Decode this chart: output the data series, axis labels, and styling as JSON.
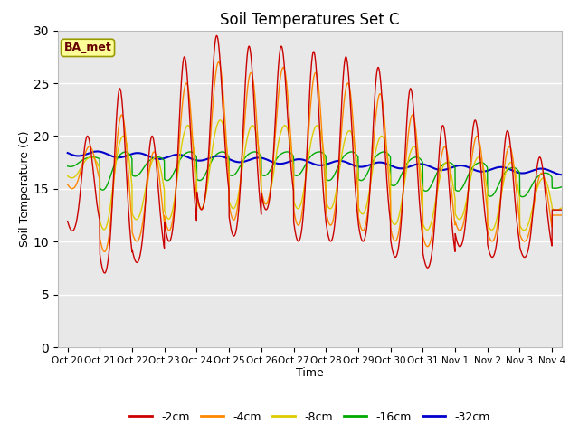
{
  "title": "Soil Temperatures Set C",
  "xlabel": "Time",
  "ylabel": "Soil Temperature (C)",
  "ylim": [
    0,
    30
  ],
  "background_color": "#e8e8e8",
  "outer_background": "#ffffff",
  "annotation_text": "BA_met",
  "annotation_bg": "#ffff99",
  "annotation_border": "#999900",
  "series": [
    {
      "label": "-2cm",
      "color": "#cc0000",
      "lw": 1.0
    },
    {
      "label": "-4cm",
      "color": "#ff8800",
      "lw": 1.0
    },
    {
      "label": "-8cm",
      "color": "#ddcc00",
      "lw": 1.0
    },
    {
      "label": "-16cm",
      "color": "#00aa00",
      "lw": 1.0
    },
    {
      "label": "-32cm",
      "color": "#0000cc",
      "lw": 1.5
    }
  ],
  "tick_labels": [
    "Oct 20",
    "Oct 21",
    "Oct 22",
    "Oct 23",
    "Oct 24",
    "Oct 25",
    "Oct 26",
    "Oct 27",
    "Oct 28",
    "Oct 29",
    "Oct 30",
    "Oct 31",
    "Nov 1",
    "Nov 2",
    "Nov 3",
    "Nov 4"
  ],
  "yticks": [
    0,
    5,
    10,
    15,
    20,
    25,
    30
  ],
  "legend_colors": [
    "#cc0000",
    "#ff8800",
    "#ddcc00",
    "#00aa00",
    "#0000cc"
  ],
  "legend_labels": [
    "-2cm",
    "-4cm",
    "-8cm",
    "-16cm",
    "-32cm"
  ],
  "n_days": 16,
  "pts_per_day": 144
}
